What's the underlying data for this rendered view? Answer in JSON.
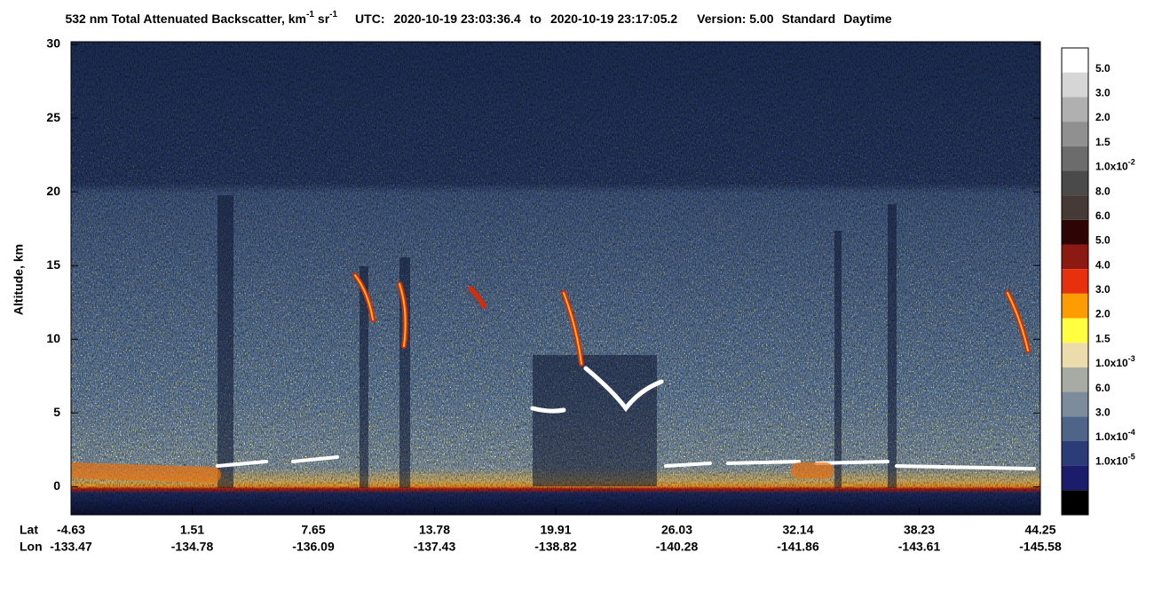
{
  "chart_data": {
    "type": "curtain",
    "title": {
      "text": "532 nm Total Attenuated Backscatter, km",
      "exp1": "-1",
      "unit2": "sr",
      "exp2": "-1"
    },
    "utc": {
      "label": "UTC:",
      "start": "2020-10-19 23:03:36.4",
      "sep": "to",
      "end": "2020-10-19 23:17:05.2"
    },
    "version": "Version: 5.00",
    "product": "Standard",
    "daytime": "Daytime",
    "ylabel": "Altitude, km",
    "ylim": [
      -1.9,
      30
    ],
    "yticks": [
      0,
      5,
      10,
      15,
      20,
      25,
      30
    ],
    "x_rows": [
      {
        "name": "Lat",
        "labels": [
          -4.63,
          1.51,
          7.65,
          13.78,
          19.91,
          26.03,
          32.14,
          38.23,
          44.25
        ]
      },
      {
        "name": "Lon",
        "labels": [
          -133.47,
          -134.78,
          -136.09,
          -137.43,
          -138.82,
          -140.28,
          -141.86,
          -143.61,
          -145.58
        ]
      }
    ],
    "colorbar": {
      "colors": [
        "#ffffff",
        "#d6d6d6",
        "#b0b0b0",
        "#909090",
        "#6c6c6c",
        "#4a4a4a",
        "#463a36",
        "#2e0404",
        "#8c1a12",
        "#e8300c",
        "#ff9c00",
        "#ffff40",
        "#ecdcac",
        "#a8aaa4",
        "#7c8c9c",
        "#4e6488",
        "#2c3c78",
        "#1c1c6c",
        "#000000"
      ],
      "labels": [
        "5.0",
        "3.0",
        "2.0",
        "1.5",
        {
          "text": "1.0x10",
          "sup": "-2"
        },
        "8.0",
        "6.0",
        "5.0",
        "4.0",
        "3.0",
        "2.0",
        "1.5",
        {
          "text": "1.0x10",
          "sup": "-3"
        },
        "6.0",
        "3.0",
        {
          "text": "1.0x10",
          "sup": "-4"
        },
        {
          "text": "1.0x10",
          "sup": "-5"
        }
      ]
    }
  }
}
